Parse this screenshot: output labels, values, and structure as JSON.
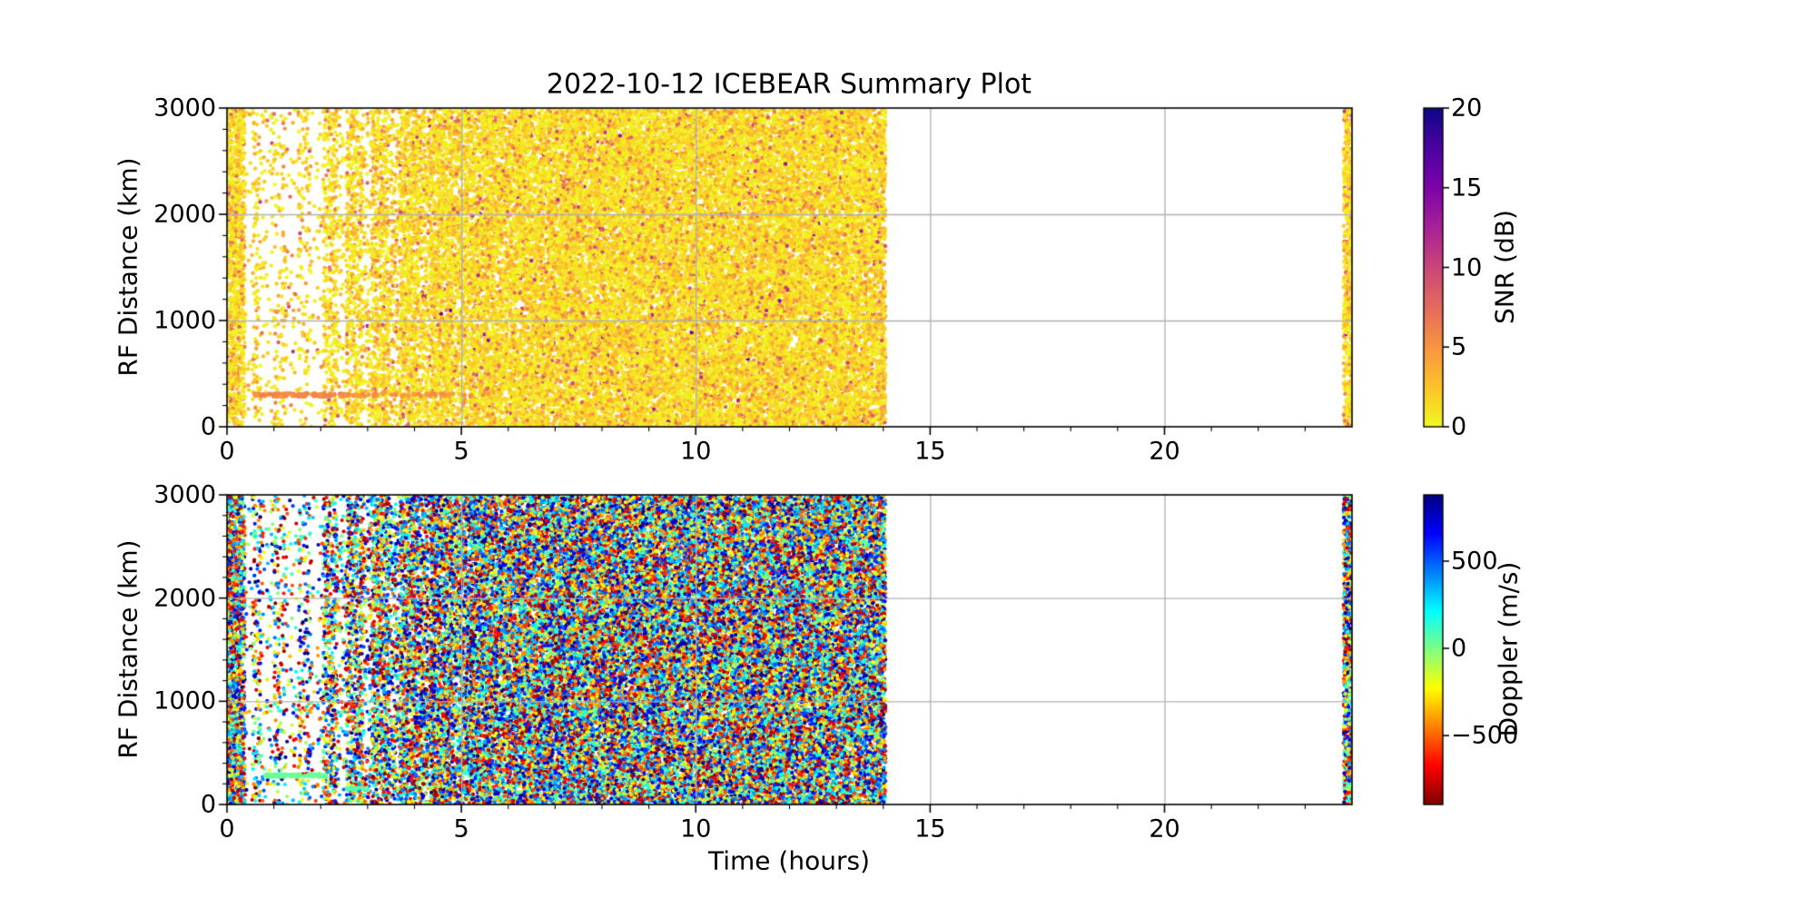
{
  "figure": {
    "title": "2022-10-12 ICEBEAR Summary Plot",
    "background": "#ffffff",
    "grid_color": "#b0b0b0",
    "frame_color": "#000000"
  },
  "chart_data": [
    {
      "type": "scatter",
      "name": "snr-panel",
      "xlabel": "",
      "ylabel": "RF Distance (km)",
      "xlim": [
        0,
        24
      ],
      "ylim": [
        0,
        3000
      ],
      "xticks": [
        0,
        5,
        10,
        15,
        20
      ],
      "xtick_labels": [
        "0",
        "5",
        "10",
        "15",
        "20"
      ],
      "x_minor_step": 1,
      "yticks": [
        0,
        1000,
        2000,
        3000
      ],
      "ytick_labels": [
        "0",
        "1000",
        "2000",
        "3000"
      ],
      "y_minor_step": 200,
      "grid": true,
      "colorbar": {
        "label": "SNR (dB)",
        "vmin": 0,
        "vmax": 20,
        "ticks": [
          0,
          5,
          10,
          15,
          20
        ],
        "tick_labels": [
          "0",
          "5",
          "10",
          "15",
          "20"
        ],
        "colormap_name": "plasma_r",
        "colormap_stops": [
          [
            0,
            "#f0f921"
          ],
          [
            0.125,
            "#fdc328"
          ],
          [
            0.25,
            "#f89441"
          ],
          [
            0.375,
            "#e56b5d"
          ],
          [
            0.5,
            "#cb4679"
          ],
          [
            0.625,
            "#a82296"
          ],
          [
            0.75,
            "#7d03a8"
          ],
          [
            0.875,
            "#4b03a1"
          ],
          [
            1,
            "#0d0887"
          ]
        ]
      },
      "value_model": {
        "distribution": "exponential",
        "mean_db": 2.0,
        "clip": [
          0,
          20
        ]
      },
      "coverage_segments": [
        [
          0.0,
          0.38,
          1.0
        ],
        [
          0.38,
          0.55,
          0.04
        ],
        [
          0.55,
          0.72,
          0.22
        ],
        [
          0.72,
          1.0,
          0.07
        ],
        [
          1.0,
          1.28,
          0.15
        ],
        [
          1.28,
          1.52,
          0.05
        ],
        [
          1.52,
          1.78,
          0.17
        ],
        [
          1.78,
          2.05,
          0.05
        ],
        [
          2.05,
          2.35,
          0.4
        ],
        [
          2.35,
          2.55,
          0.13
        ],
        [
          2.55,
          2.9,
          0.48
        ],
        [
          2.9,
          3.1,
          0.2
        ],
        [
          3.1,
          3.45,
          0.58
        ],
        [
          3.45,
          3.7,
          0.32
        ],
        [
          3.7,
          4.05,
          0.72
        ],
        [
          4.05,
          4.35,
          0.52
        ],
        [
          4.35,
          4.8,
          0.8
        ],
        [
          4.8,
          5.2,
          0.65
        ],
        [
          5.2,
          5.7,
          0.86
        ],
        [
          5.7,
          6.1,
          0.74
        ],
        [
          6.1,
          7.0,
          0.9
        ],
        [
          7.0,
          8.0,
          0.95
        ],
        [
          8.0,
          14.05,
          1.0
        ],
        [
          23.82,
          24.0,
          1.0
        ]
      ],
      "data_gap_hours": [
        14.05,
        23.82
      ],
      "features": [
        {
          "kind": "horizontal-trace",
          "rf_km": 300,
          "t_start": 0.55,
          "t_end": 2.6,
          "n": 90,
          "value": 5.5
        },
        {
          "kind": "horizontal-trace",
          "rf_km": 300,
          "t_start": 2.6,
          "t_end": 5.6,
          "n": 40,
          "value": 5.0
        }
      ],
      "seed": 42,
      "points_per_solid_hour": 3200,
      "dot_radius_px": 2.2
    },
    {
      "type": "scatter",
      "name": "doppler-panel",
      "xlabel": "Time (hours)",
      "ylabel": "RF Distance (km)",
      "xlim": [
        0,
        24
      ],
      "ylim": [
        0,
        3000
      ],
      "xticks": [
        0,
        5,
        10,
        15,
        20
      ],
      "xtick_labels": [
        "0",
        "5",
        "10",
        "15",
        "20"
      ],
      "x_minor_step": 1,
      "yticks": [
        0,
        1000,
        2000,
        3000
      ],
      "ytick_labels": [
        "0",
        "1000",
        "2000",
        "3000"
      ],
      "y_minor_step": 200,
      "grid": true,
      "colorbar": {
        "label": "Doppler (m/s)",
        "vmin": -895,
        "vmax": 880,
        "ticks": [
          -500,
          0,
          500
        ],
        "tick_labels": [
          "−500",
          "0",
          "500"
        ],
        "colormap_name": "jet_r",
        "colormap_stops": [
          [
            0,
            "#7f0000"
          ],
          [
            0.125,
            "#ff0000"
          ],
          [
            0.375,
            "#ffff00"
          ],
          [
            0.5,
            "#80ff80"
          ],
          [
            0.625,
            "#00ffff"
          ],
          [
            0.875,
            "#0000ff"
          ],
          [
            1,
            "#00007f"
          ]
        ]
      },
      "value_model": {
        "distribution": "uniform",
        "range": [
          -895,
          880
        ]
      },
      "coverage_segments": [
        [
          0.0,
          0.38,
          1.0
        ],
        [
          0.38,
          0.55,
          0.04
        ],
        [
          0.55,
          0.72,
          0.22
        ],
        [
          0.72,
          1.0,
          0.07
        ],
        [
          1.0,
          1.28,
          0.15
        ],
        [
          1.28,
          1.52,
          0.05
        ],
        [
          1.52,
          1.78,
          0.17
        ],
        [
          1.78,
          2.05,
          0.05
        ],
        [
          2.05,
          2.35,
          0.4
        ],
        [
          2.35,
          2.55,
          0.13
        ],
        [
          2.55,
          2.9,
          0.48
        ],
        [
          2.9,
          3.1,
          0.2
        ],
        [
          3.1,
          3.45,
          0.58
        ],
        [
          3.45,
          3.7,
          0.32
        ],
        [
          3.7,
          4.05,
          0.72
        ],
        [
          4.05,
          4.35,
          0.52
        ],
        [
          4.35,
          4.8,
          0.8
        ],
        [
          4.8,
          5.2,
          0.65
        ],
        [
          5.2,
          5.7,
          0.86
        ],
        [
          5.7,
          6.1,
          0.74
        ],
        [
          6.1,
          7.0,
          0.9
        ],
        [
          7.0,
          8.0,
          0.95
        ],
        [
          8.0,
          14.05,
          1.0
        ],
        [
          23.82,
          24.0,
          1.0
        ]
      ],
      "data_gap_hours": [
        14.05,
        23.82
      ],
      "features": [
        {
          "kind": "horizontal-trace",
          "rf_km": 280,
          "t_start": 0.8,
          "t_end": 2.15,
          "n": 80,
          "value": 30
        },
        {
          "kind": "horizontal-trace",
          "rf_km": 150,
          "t_start": 2.55,
          "t_end": 3.05,
          "n": 18,
          "value": 60
        }
      ],
      "seed": 1337,
      "points_per_solid_hour": 4300,
      "dot_radius_px": 2.1
    }
  ]
}
